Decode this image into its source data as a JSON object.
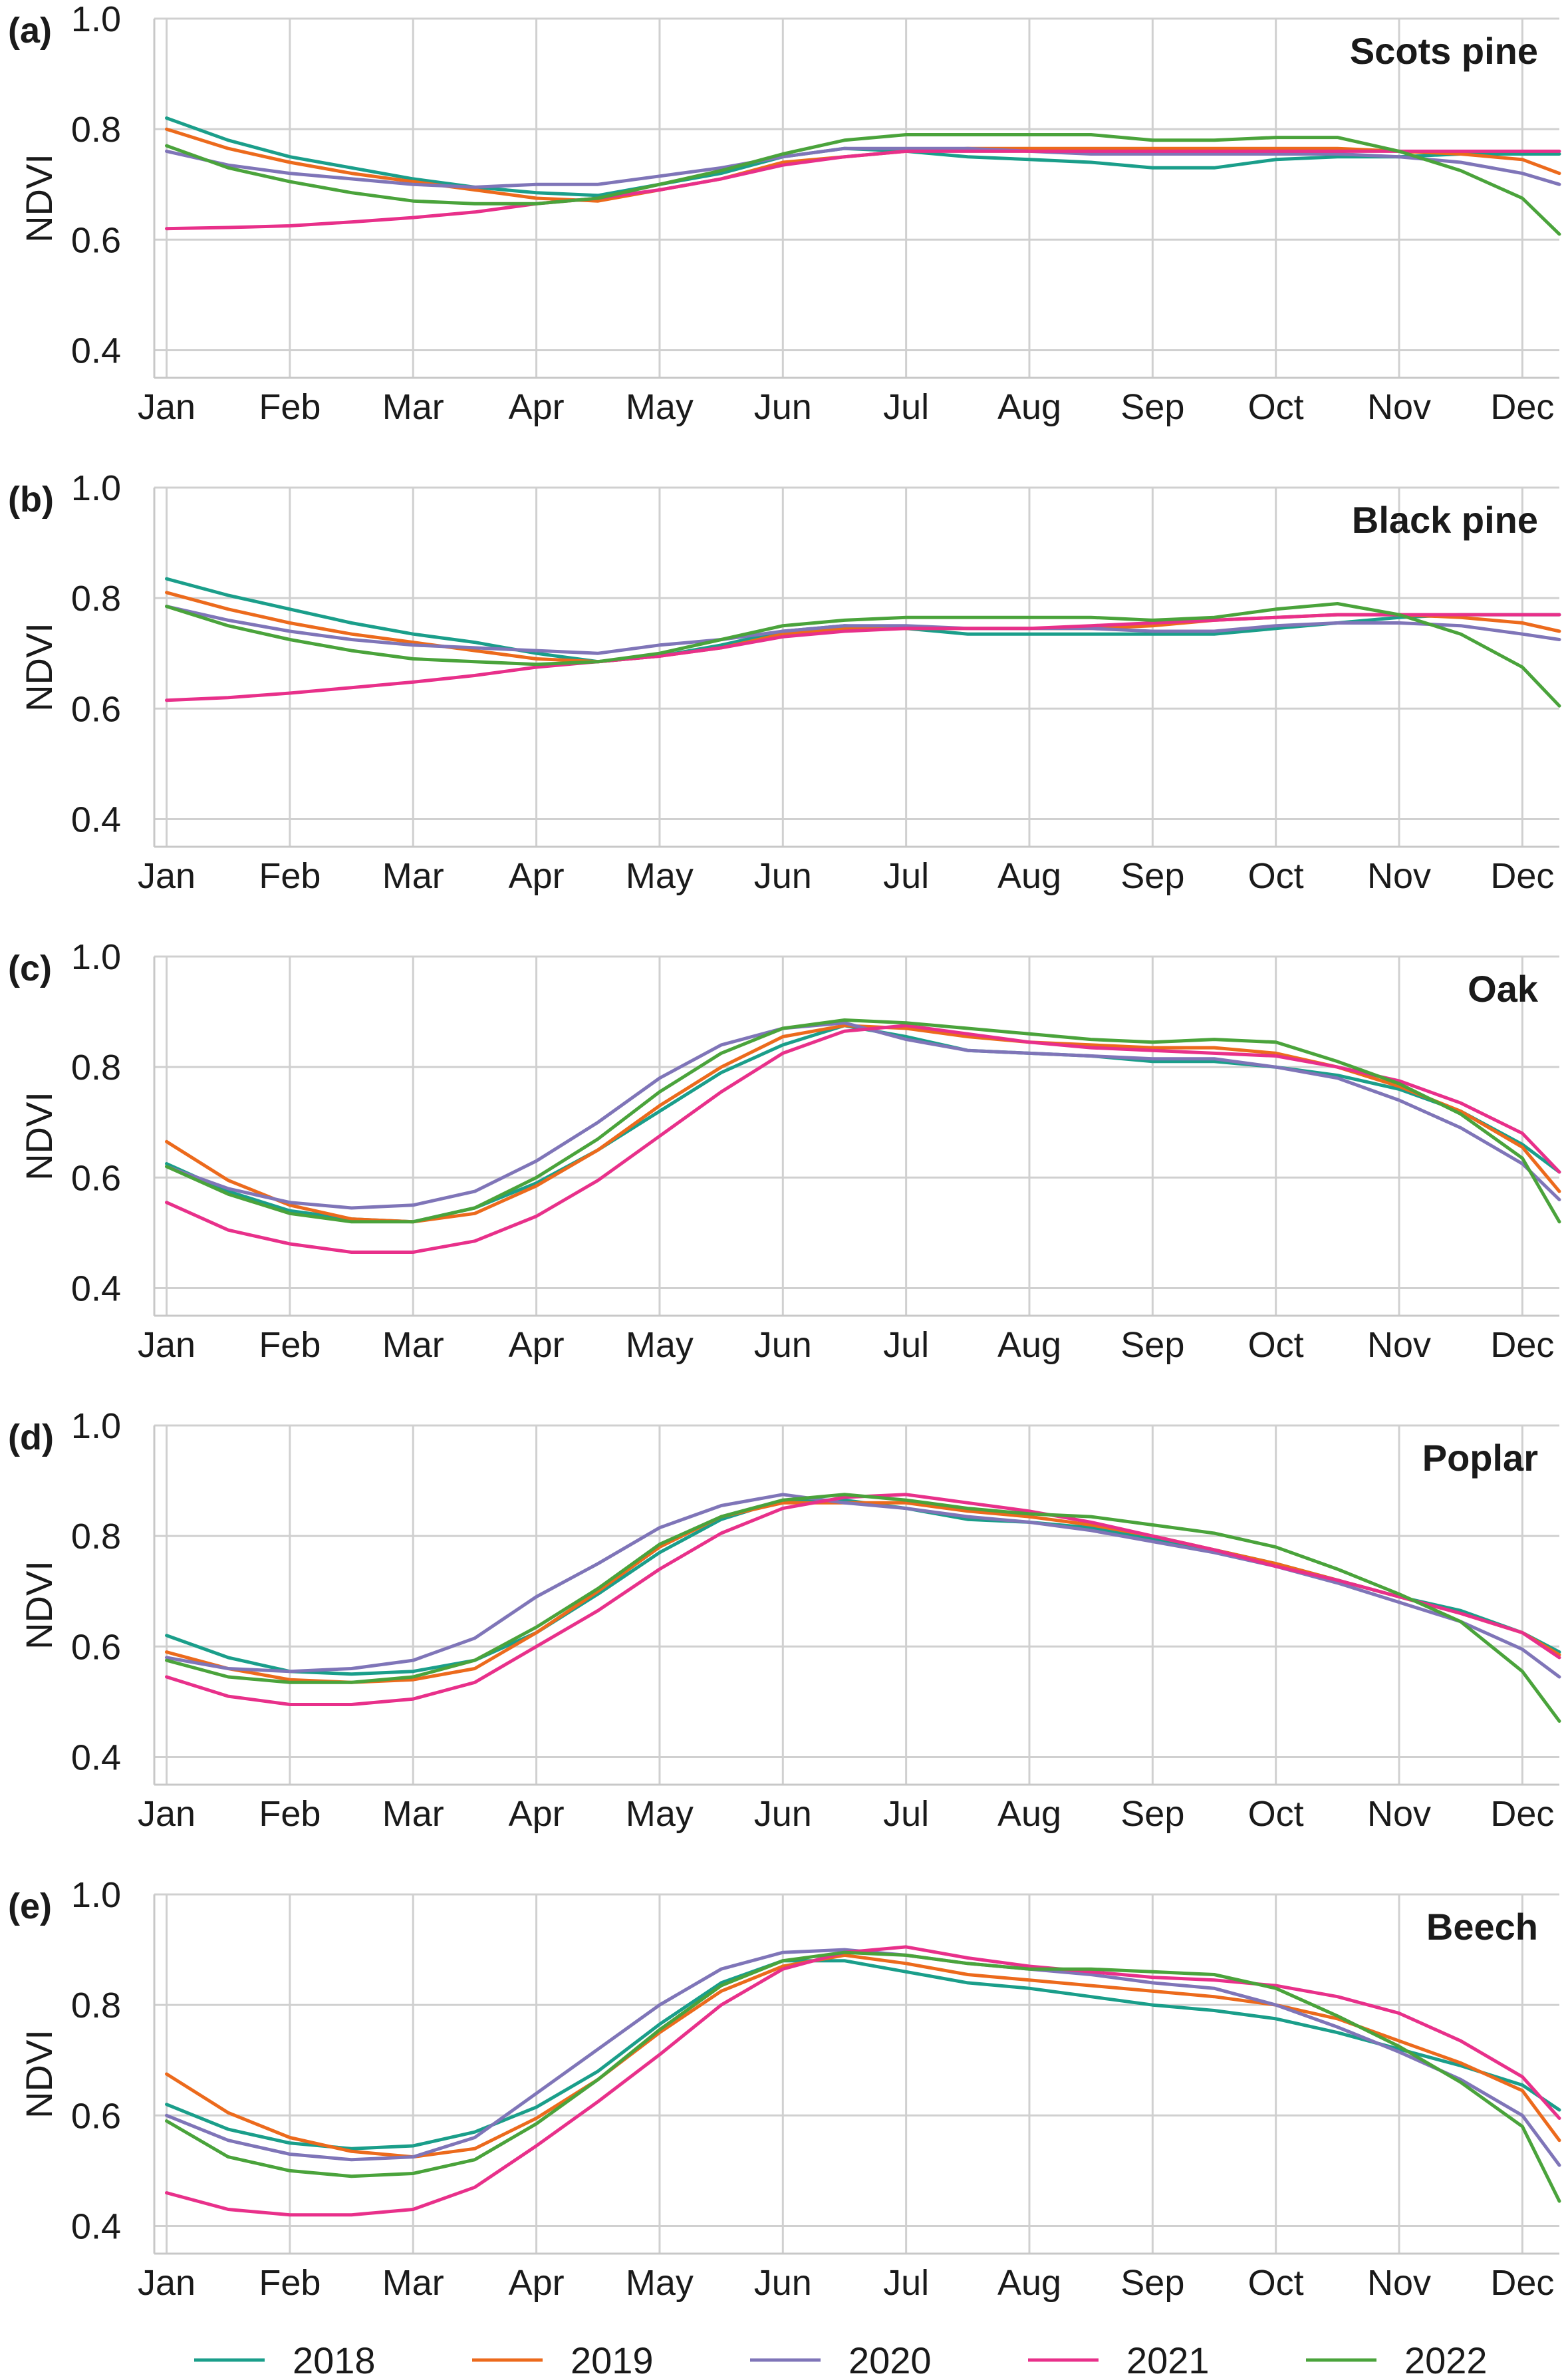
{
  "chart_data": [
    {
      "type": "line",
      "panel_label": "(a)",
      "title": "Scots pine",
      "ylabel": "NDVI",
      "xlabel": "",
      "ylim": [
        0.35,
        1.0
      ],
      "xlim": [
        -0.1,
        11.3
      ],
      "yticks": [
        0.4,
        0.6,
        0.8,
        1.0
      ],
      "ytick_labels": [
        "0.4",
        "0.6",
        "0.8",
        "1.0"
      ],
      "categories": [
        "Jan",
        "Feb",
        "Mar",
        "Apr",
        "May",
        "Jun",
        "Jul",
        "Aug",
        "Sep",
        "Oct",
        "Nov",
        "Dec"
      ],
      "x": [
        0,
        0.5,
        1,
        1.5,
        2,
        2.5,
        3,
        3.5,
        4,
        4.5,
        5,
        5.5,
        6,
        6.5,
        7,
        7.5,
        8,
        8.5,
        9,
        9.5,
        10,
        10.5,
        11,
        11.3
      ],
      "series": [
        {
          "name": "2018",
          "values": [
            0.82,
            0.78,
            0.75,
            0.73,
            0.71,
            0.695,
            0.685,
            0.68,
            0.7,
            0.72,
            0.75,
            0.765,
            0.76,
            0.75,
            0.745,
            0.74,
            0.73,
            0.73,
            0.745,
            0.75,
            0.75,
            0.755,
            0.755,
            0.755
          ]
        },
        {
          "name": "2019",
          "values": [
            0.8,
            0.765,
            0.74,
            0.72,
            0.705,
            0.69,
            0.675,
            0.67,
            0.69,
            0.71,
            0.74,
            0.75,
            0.76,
            0.765,
            0.765,
            0.765,
            0.765,
            0.765,
            0.765,
            0.765,
            0.76,
            0.755,
            0.745,
            0.72
          ]
        },
        {
          "name": "2020",
          "values": [
            0.76,
            0.735,
            0.72,
            0.71,
            0.7,
            0.695,
            0.7,
            0.7,
            0.715,
            0.73,
            0.75,
            0.765,
            0.765,
            0.765,
            0.76,
            0.755,
            0.755,
            0.755,
            0.755,
            0.755,
            0.75,
            0.74,
            0.72,
            0.7
          ]
        },
        {
          "name": "2021",
          "values": [
            0.62,
            0.622,
            0.625,
            0.632,
            0.64,
            0.65,
            0.665,
            0.675,
            0.69,
            0.71,
            0.735,
            0.75,
            0.76,
            0.76,
            0.76,
            0.76,
            0.76,
            0.76,
            0.76,
            0.76,
            0.76,
            0.76,
            0.76,
            0.76
          ]
        },
        {
          "name": "2022",
          "values": [
            0.77,
            0.73,
            0.705,
            0.685,
            0.67,
            0.665,
            0.665,
            0.675,
            0.7,
            0.725,
            0.755,
            0.78,
            0.79,
            0.79,
            0.79,
            0.79,
            0.78,
            0.78,
            0.785,
            0.785,
            0.76,
            0.725,
            0.675,
            0.61
          ]
        }
      ]
    },
    {
      "type": "line",
      "panel_label": "(b)",
      "title": "Black pine",
      "ylabel": "NDVI",
      "xlabel": "",
      "ylim": [
        0.35,
        1.0
      ],
      "xlim": [
        -0.1,
        11.3
      ],
      "yticks": [
        0.4,
        0.6,
        0.8,
        1.0
      ],
      "ytick_labels": [
        "0.4",
        "0.6",
        "0.8",
        "1.0"
      ],
      "categories": [
        "Jan",
        "Feb",
        "Mar",
        "Apr",
        "May",
        "Jun",
        "Jul",
        "Aug",
        "Sep",
        "Oct",
        "Nov",
        "Dec"
      ],
      "x": [
        0,
        0.5,
        1,
        1.5,
        2,
        2.5,
        3,
        3.5,
        4,
        4.5,
        5,
        5.5,
        6,
        6.5,
        7,
        7.5,
        8,
        8.5,
        9,
        9.5,
        10,
        10.5,
        11,
        11.3
      ],
      "series": [
        {
          "name": "2018",
          "values": [
            0.835,
            0.805,
            0.78,
            0.755,
            0.735,
            0.72,
            0.7,
            0.685,
            0.695,
            0.715,
            0.74,
            0.75,
            0.745,
            0.735,
            0.735,
            0.735,
            0.735,
            0.735,
            0.745,
            0.755,
            0.765,
            0.77,
            0.77,
            0.77
          ]
        },
        {
          "name": "2019",
          "values": [
            0.81,
            0.78,
            0.755,
            0.735,
            0.72,
            0.705,
            0.69,
            0.685,
            0.695,
            0.71,
            0.735,
            0.745,
            0.745,
            0.745,
            0.745,
            0.745,
            0.75,
            0.76,
            0.765,
            0.77,
            0.77,
            0.765,
            0.755,
            0.74
          ]
        },
        {
          "name": "2020",
          "values": [
            0.785,
            0.76,
            0.74,
            0.725,
            0.715,
            0.71,
            0.705,
            0.7,
            0.715,
            0.725,
            0.74,
            0.75,
            0.75,
            0.745,
            0.745,
            0.745,
            0.74,
            0.74,
            0.75,
            0.755,
            0.755,
            0.75,
            0.735,
            0.725
          ]
        },
        {
          "name": "2021",
          "values": [
            0.615,
            0.62,
            0.628,
            0.638,
            0.648,
            0.66,
            0.675,
            0.685,
            0.695,
            0.71,
            0.73,
            0.74,
            0.745,
            0.745,
            0.745,
            0.75,
            0.755,
            0.76,
            0.765,
            0.77,
            0.77,
            0.77,
            0.77,
            0.77
          ]
        },
        {
          "name": "2022",
          "values": [
            0.785,
            0.75,
            0.725,
            0.705,
            0.69,
            0.685,
            0.68,
            0.685,
            0.7,
            0.725,
            0.75,
            0.76,
            0.765,
            0.765,
            0.765,
            0.765,
            0.76,
            0.765,
            0.78,
            0.79,
            0.77,
            0.735,
            0.675,
            0.605
          ]
        }
      ]
    },
    {
      "type": "line",
      "panel_label": "(c)",
      "title": "Oak",
      "ylabel": "NDVI",
      "xlabel": "",
      "ylim": [
        0.35,
        1.0
      ],
      "xlim": [
        -0.1,
        11.3
      ],
      "yticks": [
        0.4,
        0.6,
        0.8,
        1.0
      ],
      "ytick_labels": [
        "0.4",
        "0.6",
        "0.8",
        "1.0"
      ],
      "categories": [
        "Jan",
        "Feb",
        "Mar",
        "Apr",
        "May",
        "Jun",
        "Jul",
        "Aug",
        "Sep",
        "Oct",
        "Nov",
        "Dec"
      ],
      "x": [
        0,
        0.5,
        1,
        1.5,
        2,
        2.5,
        3,
        3.5,
        4,
        4.5,
        5,
        5.5,
        6,
        6.5,
        7,
        7.5,
        8,
        8.5,
        9,
        9.5,
        10,
        10.5,
        11,
        11.3
      ],
      "series": [
        {
          "name": "2018",
          "values": [
            0.625,
            0.575,
            0.54,
            0.525,
            0.52,
            0.545,
            0.59,
            0.65,
            0.72,
            0.79,
            0.84,
            0.875,
            0.855,
            0.83,
            0.825,
            0.82,
            0.81,
            0.81,
            0.8,
            0.785,
            0.76,
            0.72,
            0.66,
            0.61
          ]
        },
        {
          "name": "2019",
          "values": [
            0.665,
            0.595,
            0.55,
            0.525,
            0.52,
            0.535,
            0.585,
            0.65,
            0.73,
            0.8,
            0.855,
            0.875,
            0.87,
            0.855,
            0.845,
            0.84,
            0.835,
            0.835,
            0.825,
            0.8,
            0.765,
            0.72,
            0.655,
            0.575
          ]
        },
        {
          "name": "2020",
          "values": [
            0.62,
            0.58,
            0.555,
            0.545,
            0.55,
            0.575,
            0.63,
            0.7,
            0.78,
            0.84,
            0.87,
            0.88,
            0.85,
            0.83,
            0.825,
            0.82,
            0.815,
            0.815,
            0.8,
            0.78,
            0.74,
            0.69,
            0.625,
            0.56
          ]
        },
        {
          "name": "2021",
          "values": [
            0.555,
            0.505,
            0.48,
            0.465,
            0.465,
            0.485,
            0.53,
            0.595,
            0.675,
            0.755,
            0.825,
            0.865,
            0.875,
            0.86,
            0.845,
            0.835,
            0.83,
            0.825,
            0.82,
            0.8,
            0.775,
            0.735,
            0.68,
            0.61
          ]
        },
        {
          "name": "2022",
          "values": [
            0.62,
            0.57,
            0.535,
            0.52,
            0.52,
            0.545,
            0.6,
            0.67,
            0.755,
            0.825,
            0.87,
            0.885,
            0.88,
            0.87,
            0.86,
            0.85,
            0.845,
            0.85,
            0.845,
            0.81,
            0.77,
            0.715,
            0.635,
            0.52
          ]
        }
      ]
    },
    {
      "type": "line",
      "panel_label": "(d)",
      "title": "Poplar",
      "ylabel": "NDVI",
      "xlabel": "",
      "ylim": [
        0.35,
        1.0
      ],
      "xlim": [
        -0.1,
        11.3
      ],
      "yticks": [
        0.4,
        0.6,
        0.8,
        1.0
      ],
      "ytick_labels": [
        "0.4",
        "0.6",
        "0.8",
        "1.0"
      ],
      "categories": [
        "Jan",
        "Feb",
        "Mar",
        "Apr",
        "May",
        "Jun",
        "Jul",
        "Aug",
        "Sep",
        "Oct",
        "Nov",
        "Dec"
      ],
      "x": [
        0,
        0.5,
        1,
        1.5,
        2,
        2.5,
        3,
        3.5,
        4,
        4.5,
        5,
        5.5,
        6,
        6.5,
        7,
        7.5,
        8,
        8.5,
        9,
        9.5,
        10,
        10.5,
        11,
        11.3
      ],
      "series": [
        {
          "name": "2018",
          "values": [
            0.62,
            0.58,
            0.555,
            0.55,
            0.555,
            0.575,
            0.625,
            0.695,
            0.77,
            0.83,
            0.865,
            0.865,
            0.85,
            0.83,
            0.825,
            0.815,
            0.795,
            0.775,
            0.75,
            0.72,
            0.69,
            0.665,
            0.625,
            0.59
          ]
        },
        {
          "name": "2019",
          "values": [
            0.59,
            0.56,
            0.54,
            0.535,
            0.54,
            0.56,
            0.625,
            0.7,
            0.78,
            0.835,
            0.86,
            0.86,
            0.86,
            0.845,
            0.835,
            0.82,
            0.8,
            0.775,
            0.75,
            0.72,
            0.69,
            0.66,
            0.625,
            0.585
          ]
        },
        {
          "name": "2020",
          "values": [
            0.58,
            0.56,
            0.555,
            0.56,
            0.575,
            0.615,
            0.69,
            0.75,
            0.815,
            0.855,
            0.875,
            0.86,
            0.85,
            0.835,
            0.825,
            0.81,
            0.79,
            0.77,
            0.745,
            0.715,
            0.68,
            0.645,
            0.595,
            0.545
          ]
        },
        {
          "name": "2021",
          "values": [
            0.545,
            0.51,
            0.495,
            0.495,
            0.505,
            0.535,
            0.6,
            0.665,
            0.74,
            0.805,
            0.85,
            0.87,
            0.875,
            0.86,
            0.845,
            0.825,
            0.8,
            0.775,
            0.745,
            0.72,
            0.69,
            0.66,
            0.625,
            0.58
          ]
        },
        {
          "name": "2022",
          "values": [
            0.575,
            0.545,
            0.535,
            0.535,
            0.545,
            0.575,
            0.635,
            0.705,
            0.785,
            0.835,
            0.865,
            0.875,
            0.865,
            0.85,
            0.84,
            0.835,
            0.82,
            0.805,
            0.78,
            0.74,
            0.695,
            0.645,
            0.555,
            0.465
          ]
        }
      ]
    },
    {
      "type": "line",
      "panel_label": "(e)",
      "title": "Beech",
      "ylabel": "NDVI",
      "xlabel": "",
      "ylim": [
        0.35,
        1.0
      ],
      "xlim": [
        -0.1,
        11.3
      ],
      "yticks": [
        0.4,
        0.6,
        0.8,
        1.0
      ],
      "ytick_labels": [
        "0.4",
        "0.6",
        "0.8",
        "1.0"
      ],
      "categories": [
        "Jan",
        "Feb",
        "Mar",
        "Apr",
        "May",
        "Jun",
        "Jul",
        "Aug",
        "Sep",
        "Oct",
        "Nov",
        "Dec"
      ],
      "x": [
        0,
        0.5,
        1,
        1.5,
        2,
        2.5,
        3,
        3.5,
        4,
        4.5,
        5,
        5.5,
        6,
        6.5,
        7,
        7.5,
        8,
        8.5,
        9,
        9.5,
        10,
        10.5,
        11,
        11.3
      ],
      "series": [
        {
          "name": "2018",
          "values": [
            0.62,
            0.575,
            0.55,
            0.54,
            0.545,
            0.57,
            0.615,
            0.68,
            0.765,
            0.84,
            0.88,
            0.88,
            0.86,
            0.84,
            0.83,
            0.815,
            0.8,
            0.79,
            0.775,
            0.75,
            0.72,
            0.69,
            0.655,
            0.61
          ]
        },
        {
          "name": "2019",
          "values": [
            0.675,
            0.605,
            0.56,
            0.535,
            0.525,
            0.54,
            0.595,
            0.665,
            0.75,
            0.825,
            0.87,
            0.89,
            0.875,
            0.855,
            0.845,
            0.835,
            0.825,
            0.815,
            0.8,
            0.775,
            0.735,
            0.695,
            0.645,
            0.555
          ]
        },
        {
          "name": "2020",
          "values": [
            0.6,
            0.555,
            0.53,
            0.52,
            0.525,
            0.56,
            0.64,
            0.72,
            0.8,
            0.865,
            0.895,
            0.9,
            0.89,
            0.875,
            0.865,
            0.855,
            0.84,
            0.83,
            0.8,
            0.76,
            0.715,
            0.665,
            0.6,
            0.51
          ]
        },
        {
          "name": "2021",
          "values": [
            0.46,
            0.43,
            0.42,
            0.42,
            0.43,
            0.47,
            0.545,
            0.625,
            0.71,
            0.8,
            0.865,
            0.895,
            0.905,
            0.885,
            0.87,
            0.86,
            0.85,
            0.845,
            0.835,
            0.815,
            0.785,
            0.735,
            0.67,
            0.595
          ]
        },
        {
          "name": "2022",
          "values": [
            0.59,
            0.525,
            0.5,
            0.49,
            0.495,
            0.52,
            0.585,
            0.665,
            0.755,
            0.835,
            0.88,
            0.895,
            0.89,
            0.875,
            0.865,
            0.865,
            0.86,
            0.855,
            0.83,
            0.78,
            0.725,
            0.66,
            0.58,
            0.445
          ]
        }
      ]
    }
  ],
  "legend": {
    "placement": "bottom",
    "entries": [
      {
        "label": "2018",
        "color": "#1a9e8a"
      },
      {
        "label": "2019",
        "color": "#ec6a1c"
      },
      {
        "label": "2020",
        "color": "#7f75b8"
      },
      {
        "label": "2021",
        "color": "#e8308a"
      },
      {
        "label": "2022",
        "color": "#4aa33b"
      }
    ]
  }
}
